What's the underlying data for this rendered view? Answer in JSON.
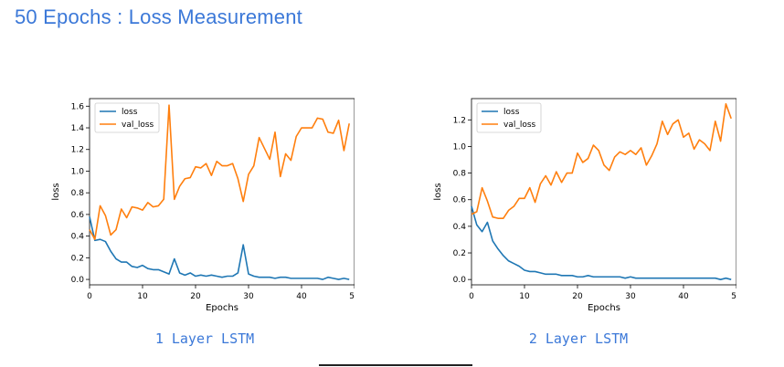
{
  "page": {
    "title": "50 Epochs : Loss Measurement",
    "captions": [
      "1 Layer LSTM",
      "2 Layer LSTM"
    ]
  },
  "chart_data": [
    {
      "type": "line",
      "xlabel": "Epochs",
      "ylabel": "loss",
      "xlim": [
        0,
        50
      ],
      "ylim": [
        -0.05,
        1.67
      ],
      "xticks": [
        0,
        10,
        20,
        30,
        40,
        50
      ],
      "yticks": [
        0.0,
        0.2,
        0.4,
        0.6,
        0.8,
        1.0,
        1.2,
        1.4,
        1.6
      ],
      "ytick_format": 1,
      "grid": false,
      "legend": "top-left",
      "x": [
        0,
        1,
        2,
        3,
        4,
        5,
        6,
        7,
        8,
        9,
        10,
        11,
        12,
        13,
        14,
        15,
        16,
        17,
        18,
        19,
        20,
        21,
        22,
        23,
        24,
        25,
        26,
        27,
        28,
        29,
        30,
        31,
        32,
        33,
        34,
        35,
        36,
        37,
        38,
        39,
        40,
        41,
        42,
        43,
        44,
        45,
        46,
        47,
        48,
        49
      ],
      "series": [
        {
          "name": "loss",
          "color": "#1f77b4",
          "values": [
            0.58,
            0.36,
            0.37,
            0.35,
            0.26,
            0.19,
            0.16,
            0.16,
            0.12,
            0.11,
            0.13,
            0.1,
            0.09,
            0.09,
            0.07,
            0.05,
            0.19,
            0.06,
            0.04,
            0.06,
            0.03,
            0.04,
            0.03,
            0.04,
            0.03,
            0.02,
            0.03,
            0.03,
            0.06,
            0.32,
            0.05,
            0.03,
            0.02,
            0.02,
            0.02,
            0.01,
            0.02,
            0.02,
            0.01,
            0.01,
            0.01,
            0.01,
            0.01,
            0.01,
            0.0,
            0.02,
            0.01,
            0.0,
            0.01,
            0.0
          ]
        },
        {
          "name": "val_loss",
          "color": "#ff7f0e",
          "values": [
            0.46,
            0.37,
            0.68,
            0.59,
            0.41,
            0.46,
            0.65,
            0.57,
            0.67,
            0.66,
            0.64,
            0.71,
            0.67,
            0.68,
            0.74,
            1.61,
            0.74,
            0.86,
            0.93,
            0.94,
            1.04,
            1.03,
            1.07,
            0.96,
            1.09,
            1.05,
            1.05,
            1.07,
            0.93,
            0.72,
            0.97,
            1.05,
            1.31,
            1.21,
            1.11,
            1.36,
            0.95,
            1.16,
            1.1,
            1.32,
            1.4,
            1.4,
            1.4,
            1.49,
            1.48,
            1.36,
            1.35,
            1.47,
            1.19,
            1.44
          ]
        }
      ]
    },
    {
      "type": "line",
      "xlabel": "Epochs",
      "ylabel": "loss",
      "xlim": [
        0,
        50
      ],
      "ylim": [
        -0.04,
        1.36
      ],
      "xticks": [
        0,
        10,
        20,
        30,
        40,
        50
      ],
      "yticks": [
        0.0,
        0.2,
        0.4,
        0.6,
        0.8,
        1.0,
        1.2
      ],
      "ytick_format": 1,
      "grid": false,
      "legend": "top-left",
      "x": [
        0,
        1,
        2,
        3,
        4,
        5,
        6,
        7,
        8,
        9,
        10,
        11,
        12,
        13,
        14,
        15,
        16,
        17,
        18,
        19,
        20,
        21,
        22,
        23,
        24,
        25,
        26,
        27,
        28,
        29,
        30,
        31,
        32,
        33,
        34,
        35,
        36,
        37,
        38,
        39,
        40,
        41,
        42,
        43,
        44,
        45,
        46,
        47,
        48,
        49
      ],
      "series": [
        {
          "name": "loss",
          "color": "#1f77b4",
          "values": [
            0.55,
            0.41,
            0.36,
            0.43,
            0.29,
            0.23,
            0.18,
            0.14,
            0.12,
            0.1,
            0.07,
            0.06,
            0.06,
            0.05,
            0.04,
            0.04,
            0.04,
            0.03,
            0.03,
            0.03,
            0.02,
            0.02,
            0.03,
            0.02,
            0.02,
            0.02,
            0.02,
            0.02,
            0.02,
            0.01,
            0.02,
            0.01,
            0.01,
            0.01,
            0.01,
            0.01,
            0.01,
            0.01,
            0.01,
            0.01,
            0.01,
            0.01,
            0.01,
            0.01,
            0.01,
            0.01,
            0.01,
            0.0,
            0.01,
            0.0
          ]
        },
        {
          "name": "val_loss",
          "color": "#ff7f0e",
          "values": [
            0.49,
            0.51,
            0.69,
            0.59,
            0.47,
            0.46,
            0.46,
            0.52,
            0.55,
            0.61,
            0.61,
            0.69,
            0.58,
            0.72,
            0.78,
            0.71,
            0.81,
            0.73,
            0.8,
            0.8,
            0.95,
            0.88,
            0.91,
            1.01,
            0.97,
            0.86,
            0.82,
            0.92,
            0.96,
            0.94,
            0.97,
            0.94,
            0.99,
            0.86,
            0.93,
            1.02,
            1.19,
            1.09,
            1.17,
            1.2,
            1.07,
            1.1,
            0.98,
            1.05,
            1.02,
            0.97,
            1.19,
            1.04,
            1.32,
            1.21
          ]
        }
      ]
    }
  ]
}
